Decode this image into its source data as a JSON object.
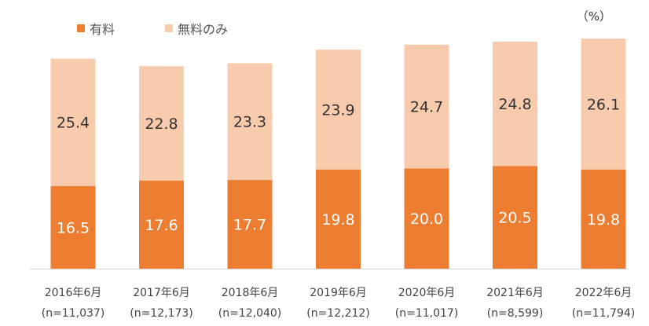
{
  "chart_data": {
    "type": "bar",
    "stacked": true,
    "unit": "（%）",
    "categories": [
      "2016年6月",
      "2017年6月",
      "2018年6月",
      "2019年6月",
      "2020年6月",
      "2021年6月",
      "2022年6月"
    ],
    "sample_sizes": [
      "(n=11,037)",
      "(n=12,173)",
      "(n=12,040)",
      "(n=12,212)",
      "(n=11,017)",
      "(n=8,599)",
      "(n=11,794)"
    ],
    "series": [
      {
        "name": "有料",
        "values": [
          16.5,
          17.6,
          17.7,
          19.8,
          20.0,
          20.5,
          19.8
        ],
        "labels": [
          "16.5",
          "17.6",
          "17.7",
          "19.8",
          "20.0",
          "20.5",
          "19.8"
        ],
        "color": "#ED7D31",
        "label_color": "#ffffff"
      },
      {
        "name": "無料のみ",
        "values": [
          25.4,
          22.8,
          23.3,
          23.9,
          24.7,
          24.8,
          26.1
        ],
        "labels": [
          "25.4",
          "22.8",
          "23.3",
          "23.9",
          "24.7",
          "24.8",
          "26.1"
        ],
        "color": "#F8CBAD",
        "label_color": "#333333"
      }
    ],
    "ylim": [
      0,
      50
    ],
    "legend": "top-left"
  }
}
